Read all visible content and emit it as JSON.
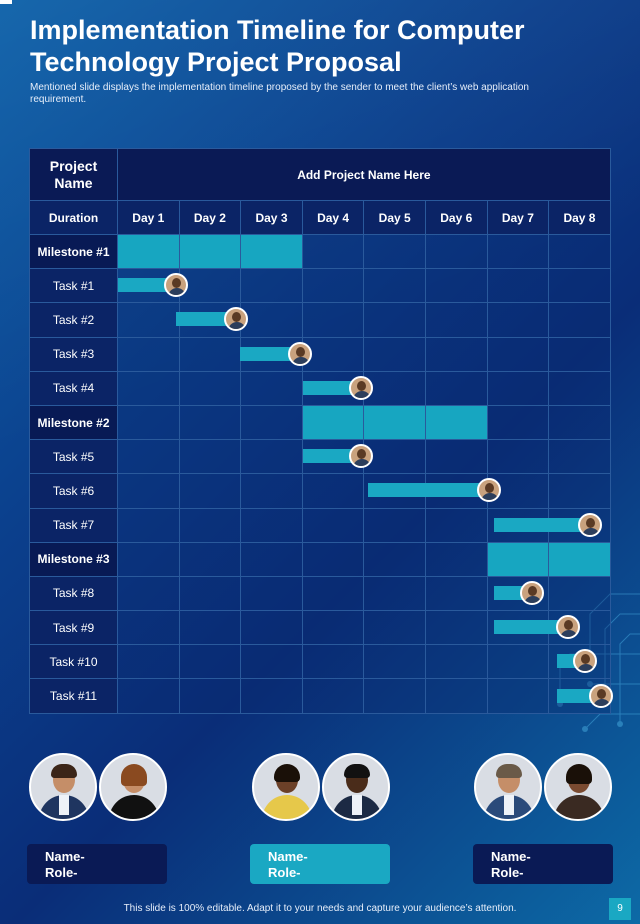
{
  "title": "Implementation Timeline for Computer Technology Project Proposal",
  "subtitle": "Mentioned slide displays the implementation timeline proposed by the sender to meet the client’s web application requirement.",
  "table": {
    "header_label": "Project Name",
    "project_name": "Add Project Name Here",
    "duration_label": "Duration",
    "days": [
      "Day 1",
      "Day 2",
      "Day 3",
      "Day 4",
      "Day 5",
      "Day 6",
      "Day 7",
      "Day 8"
    ],
    "rows": [
      {
        "label": "Milestone #1",
        "milestone": true
      },
      {
        "label": "Task #1",
        "milestone": false
      },
      {
        "label": "Task #2",
        "milestone": false
      },
      {
        "label": "Task #3",
        "milestone": false
      },
      {
        "label": "Task #4",
        "milestone": false
      },
      {
        "label": "Milestone #2",
        "milestone": true
      },
      {
        "label": "Task #5",
        "milestone": false
      },
      {
        "label": "Task #6",
        "milestone": false
      },
      {
        "label": "Task #7",
        "milestone": false
      },
      {
        "label": "Milestone #3",
        "milestone": true
      },
      {
        "label": "Task #8",
        "milestone": false
      },
      {
        "label": "Task #9",
        "milestone": false
      },
      {
        "label": "Task #10",
        "milestone": false
      },
      {
        "label": "Task #11",
        "milestone": false
      }
    ]
  },
  "team": [
    {
      "name": "Name-",
      "role": "Role-"
    },
    {
      "name": "Name-",
      "role": "Role-"
    },
    {
      "name": "Name-",
      "role": "Role-"
    }
  ],
  "footer": "This slide is 100% editable. Adapt it to your needs and capture your audience’s attention.",
  "page_number": "9",
  "colors": {
    "accent": "#1aa8c3",
    "dark": "#0a1a55"
  }
}
